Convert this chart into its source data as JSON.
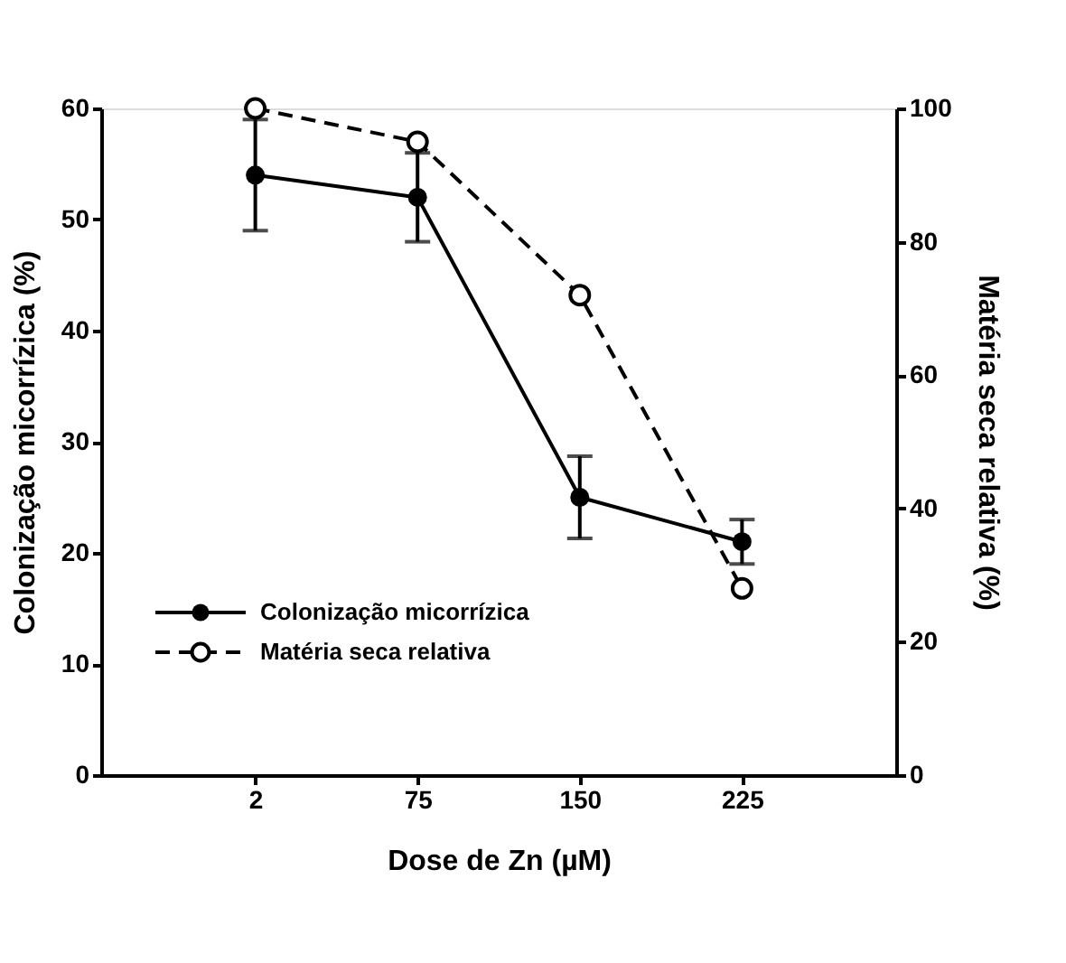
{
  "chart_data": {
    "type": "line",
    "xlabel": "Dose de Zn (µM)",
    "ylabel": "Colonização micorrízica (%)",
    "y2label": "Matéria seca relativa (%)",
    "categories": [
      "2",
      "75",
      "150",
      "225"
    ],
    "series": [
      {
        "name": "Colonização micorrízica",
        "color": "#000000",
        "values": [
          54,
          52,
          25,
          21
        ],
        "errors": [
          5,
          4,
          3.7,
          2
        ],
        "line_style": "solid"
      },
      {
        "name": "Matéria seca relativa",
        "color": "#000000",
        "values": [
          100,
          95,
          72,
          28
        ],
        "axis": "y2",
        "line_style": "dashed"
      }
    ],
    "ylim": [
      0,
      60
    ],
    "yticks": [
      0,
      10,
      20,
      30,
      40,
      50,
      60
    ],
    "y2lim": [
      0,
      100
    ],
    "y2ticks": [
      0,
      20,
      40,
      60,
      80,
      100
    ],
    "marker": "circle",
    "legend": "bottom left",
    "grid": false
  }
}
